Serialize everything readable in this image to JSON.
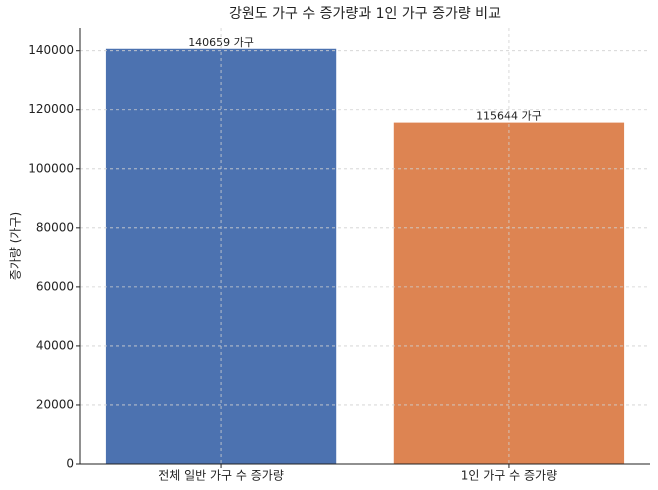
{
  "chart_data": {
    "type": "bar",
    "title": "강원도 가구 수 증가량과 1인 가구 증가량 비교",
    "ylabel": "증가량 (가구)",
    "categories": [
      "전체 일반 가구 수 증가량",
      "1인 가구 수 증가량"
    ],
    "values": [
      140659,
      115644
    ],
    "value_labels": [
      "140659 가구",
      "115644 가구"
    ],
    "colors": [
      "#4c72b0",
      "#dd8452"
    ],
    "ylim": [
      0,
      147692
    ],
    "yticks": [
      0,
      20000,
      40000,
      60000,
      80000,
      100000,
      120000,
      140000
    ],
    "grid": true
  }
}
